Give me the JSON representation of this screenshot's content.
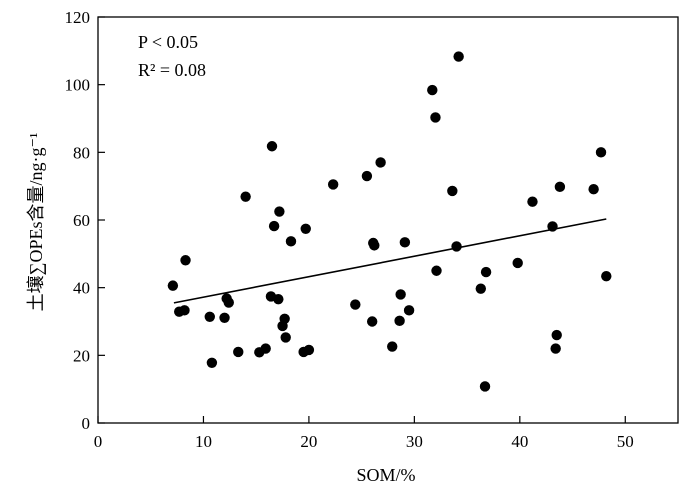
{
  "chart_data": {
    "type": "scatter",
    "title": "",
    "xlabel": "SOM/%",
    "ylabel": "土壤∑OPEs含量/ng·g⁻¹",
    "xlim": [
      0,
      55
    ],
    "ylim": [
      0,
      120
    ],
    "xticks": [
      0,
      10,
      20,
      30,
      40,
      50
    ],
    "yticks": [
      0,
      20,
      40,
      60,
      80,
      100,
      120
    ],
    "grid": false,
    "annotations": {
      "p_value": "P < 0.05",
      "r_squared": "R² = 0.08"
    },
    "trendline": {
      "x": [
        7.2,
        48.2
      ],
      "y": [
        35.5,
        60.3
      ]
    },
    "points": [
      {
        "x": 7.1,
        "y": 40.6
      },
      {
        "x": 7.7,
        "y": 32.9
      },
      {
        "x": 8.2,
        "y": 33.3
      },
      {
        "x": 8.3,
        "y": 48.1
      },
      {
        "x": 10.6,
        "y": 31.4
      },
      {
        "x": 10.8,
        "y": 17.8
      },
      {
        "x": 12.0,
        "y": 31.1
      },
      {
        "x": 12.2,
        "y": 36.8
      },
      {
        "x": 12.4,
        "y": 35.6
      },
      {
        "x": 13.3,
        "y": 21.0
      },
      {
        "x": 14.0,
        "y": 66.9
      },
      {
        "x": 15.3,
        "y": 20.9
      },
      {
        "x": 15.9,
        "y": 22.0
      },
      {
        "x": 16.4,
        "y": 37.4
      },
      {
        "x": 16.5,
        "y": 81.8
      },
      {
        "x": 16.7,
        "y": 58.2
      },
      {
        "x": 17.1,
        "y": 36.6
      },
      {
        "x": 17.2,
        "y": 62.5
      },
      {
        "x": 17.5,
        "y": 28.7
      },
      {
        "x": 17.7,
        "y": 30.8
      },
      {
        "x": 17.8,
        "y": 25.3
      },
      {
        "x": 18.3,
        "y": 53.7
      },
      {
        "x": 19.5,
        "y": 21.0
      },
      {
        "x": 19.7,
        "y": 57.4
      },
      {
        "x": 20.0,
        "y": 21.6
      },
      {
        "x": 22.3,
        "y": 70.5
      },
      {
        "x": 24.4,
        "y": 35.0
      },
      {
        "x": 25.5,
        "y": 73.0
      },
      {
        "x": 26.0,
        "y": 30.0
      },
      {
        "x": 26.1,
        "y": 53.2
      },
      {
        "x": 26.2,
        "y": 52.5
      },
      {
        "x": 26.8,
        "y": 77.0
      },
      {
        "x": 27.9,
        "y": 22.6
      },
      {
        "x": 28.6,
        "y": 30.2
      },
      {
        "x": 28.7,
        "y": 38.0
      },
      {
        "x": 29.1,
        "y": 53.4
      },
      {
        "x": 29.5,
        "y": 33.3
      },
      {
        "x": 31.7,
        "y": 98.4
      },
      {
        "x": 32.0,
        "y": 90.3
      },
      {
        "x": 32.1,
        "y": 45.0
      },
      {
        "x": 33.6,
        "y": 68.6
      },
      {
        "x": 34.0,
        "y": 52.2
      },
      {
        "x": 34.2,
        "y": 108.3
      },
      {
        "x": 36.3,
        "y": 39.7
      },
      {
        "x": 36.7,
        "y": 10.8
      },
      {
        "x": 36.8,
        "y": 44.6
      },
      {
        "x": 39.8,
        "y": 47.3
      },
      {
        "x": 41.2,
        "y": 65.4
      },
      {
        "x": 43.1,
        "y": 58.1
      },
      {
        "x": 43.4,
        "y": 22.0
      },
      {
        "x": 43.5,
        "y": 26.0
      },
      {
        "x": 43.8,
        "y": 69.8
      },
      {
        "x": 47.0,
        "y": 69.1
      },
      {
        "x": 47.7,
        "y": 80.0
      },
      {
        "x": 48.2,
        "y": 43.4
      }
    ]
  }
}
